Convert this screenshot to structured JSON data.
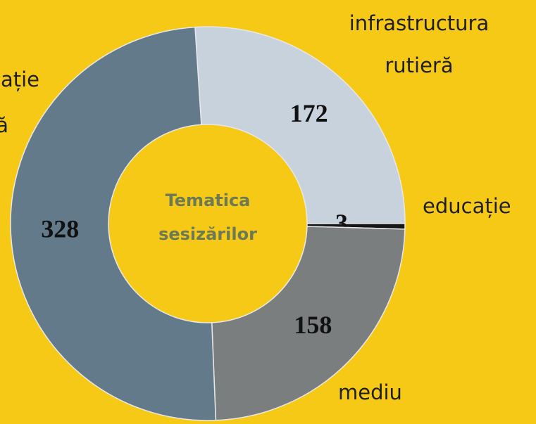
{
  "chart_data": {
    "type": "donut",
    "center_label": [
      "Tematica",
      "sesizărilor"
    ],
    "categories": [
      [
        "infrastructura",
        "rutieră"
      ],
      [
        "educație"
      ],
      [
        "mediu"
      ],
      [
        "ație",
        "ă"
      ]
    ],
    "values": [
      172,
      3,
      158,
      328
    ],
    "colors": [
      "#c8d2dd",
      "#161616",
      "#7a7e7e",
      "#637a8b"
    ],
    "background": "#f7c917"
  }
}
